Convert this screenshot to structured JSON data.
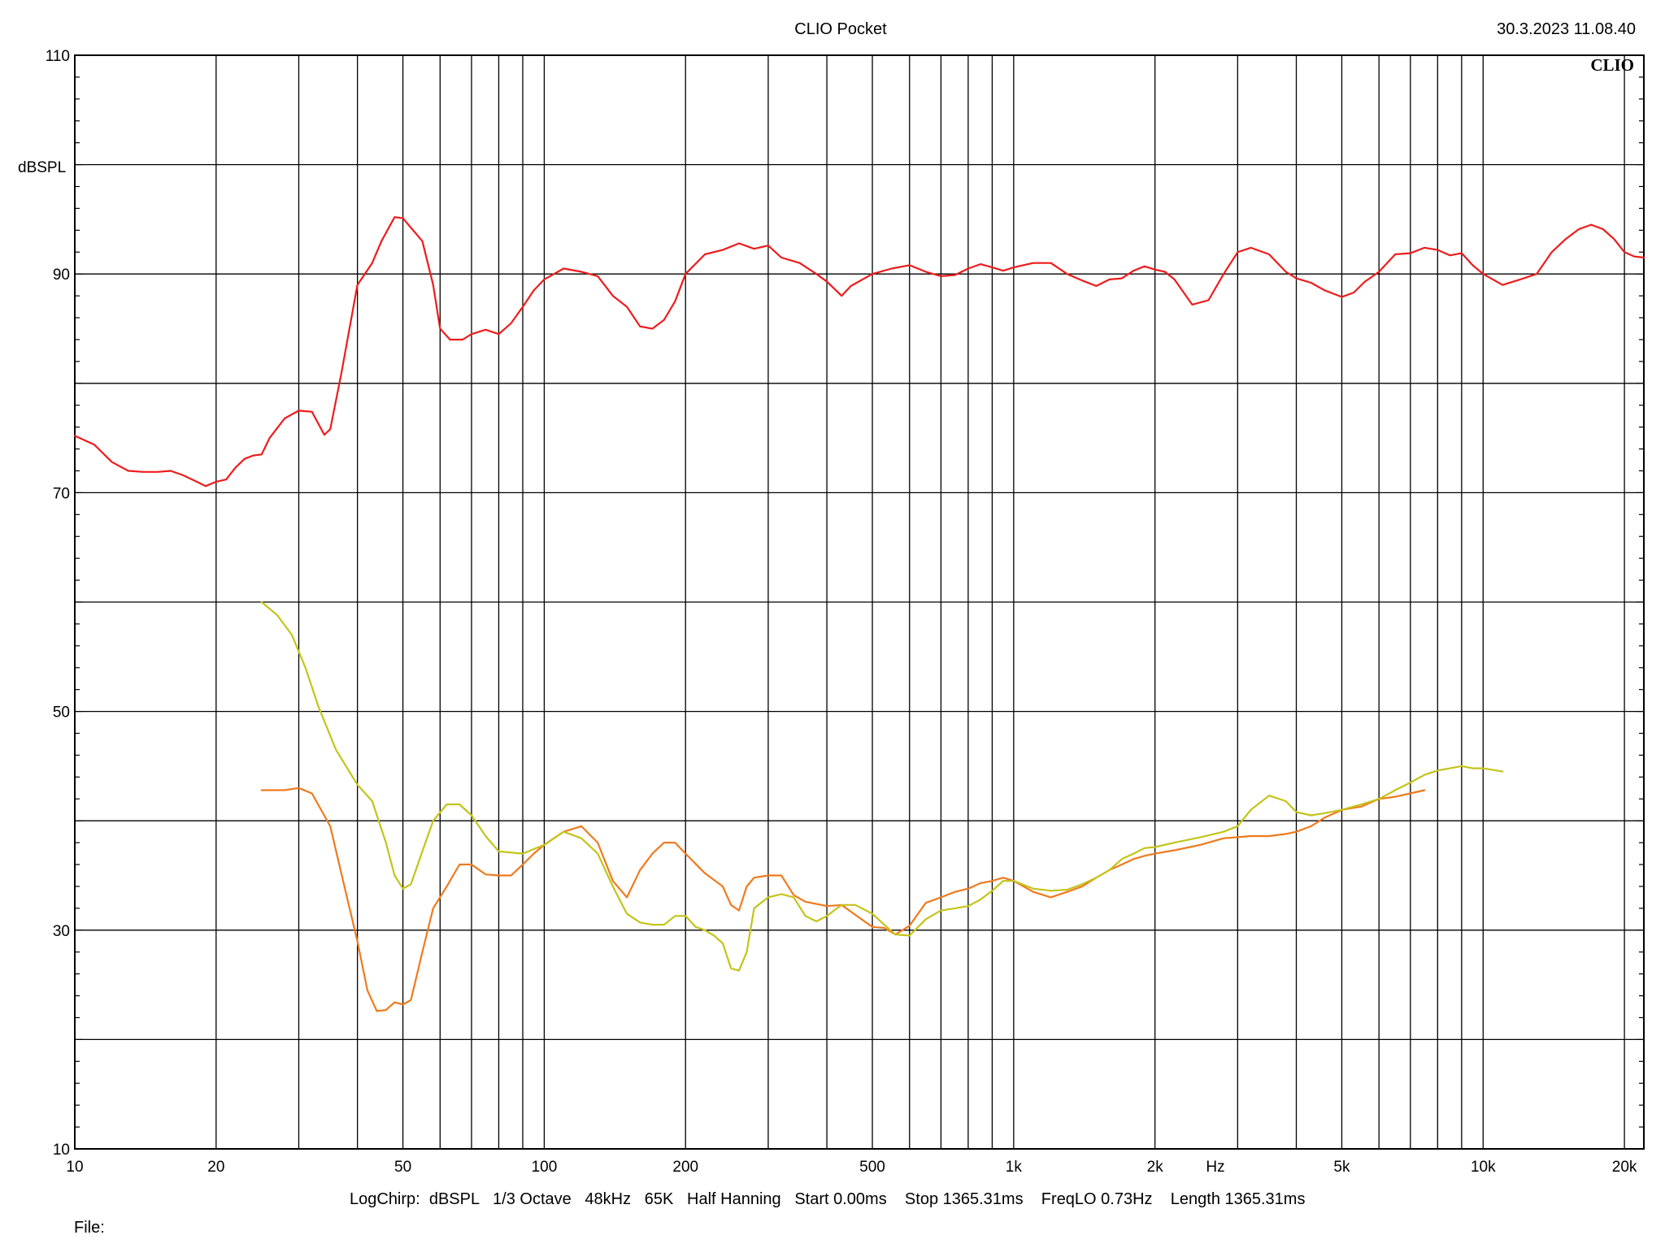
{
  "header": {
    "title": "CLIO Pocket",
    "timestamp": "30.3.2023 11.08.40",
    "logo": "CLIO"
  },
  "footer": {
    "settings": "LogChirp:  dBSPL   1/3 Octave   48kHz   65K   Half Hanning   Start 0.00ms    Stop 1365.31ms    FreqLO 0.73Hz    Length 1365.31ms",
    "file_label": "File:"
  },
  "colors": {
    "background": "#ffffff",
    "grid": "#000000",
    "series_red": "#ee1c1c",
    "series_orange": "#f07a1e",
    "series_yellow": "#c4c41a"
  },
  "chart_data": {
    "type": "line",
    "title": "CLIO Pocket",
    "xlabel": "Hz",
    "ylabel": "dBSPL",
    "xscale": "log",
    "xlim": [
      10,
      22000
    ],
    "ylim": [
      10,
      110
    ],
    "grid": true,
    "x_tick_labels": [
      {
        "value": 10,
        "label": "10"
      },
      {
        "value": 20,
        "label": "20"
      },
      {
        "value": 50,
        "label": "50"
      },
      {
        "value": 100,
        "label": "100"
      },
      {
        "value": 200,
        "label": "200"
      },
      {
        "value": 500,
        "label": "500"
      },
      {
        "value": 1000,
        "label": "1k"
      },
      {
        "value": 2000,
        "label": "2k"
      },
      {
        "value": 5000,
        "label": "5k"
      },
      {
        "value": 10000,
        "label": "10k"
      },
      {
        "value": 20000,
        "label": "20k"
      }
    ],
    "x_minor_gridlines": [
      30,
      40,
      60,
      70,
      80,
      90,
      300,
      400,
      600,
      700,
      800,
      900,
      3000,
      4000,
      6000,
      7000,
      8000,
      9000
    ],
    "y_tick_labels": [
      {
        "value": 10,
        "label": "10"
      },
      {
        "value": 30,
        "label": "30"
      },
      {
        "value": 50,
        "label": "50"
      },
      {
        "value": 70,
        "label": "70"
      },
      {
        "value": 90,
        "label": "90"
      },
      {
        "value": 110,
        "label": "110"
      }
    ],
    "y_gridlines": [
      20,
      30,
      40,
      50,
      60,
      70,
      80,
      90,
      100
    ],
    "series": [
      {
        "color": "#ee1c1c",
        "points": [
          [
            10,
            75.2
          ],
          [
            11,
            74.4
          ],
          [
            12,
            72.8
          ],
          [
            13,
            72.0
          ],
          [
            14,
            71.9
          ],
          [
            15,
            71.9
          ],
          [
            16,
            72.0
          ],
          [
            17,
            71.6
          ],
          [
            18,
            71.1
          ],
          [
            19,
            70.6
          ],
          [
            20,
            71.0
          ],
          [
            21,
            71.2
          ],
          [
            22,
            72.3
          ],
          [
            23,
            73.1
          ],
          [
            24,
            73.4
          ],
          [
            25,
            73.5
          ],
          [
            26,
            75.0
          ],
          [
            28,
            76.8
          ],
          [
            30,
            77.5
          ],
          [
            32,
            77.4
          ],
          [
            34,
            75.3
          ],
          [
            35,
            75.8
          ],
          [
            37,
            81.0
          ],
          [
            40,
            89.0
          ],
          [
            43,
            91.0
          ],
          [
            45,
            93.0
          ],
          [
            48,
            95.2
          ],
          [
            50,
            95.1
          ],
          [
            55,
            93.0
          ],
          [
            58,
            89.0
          ],
          [
            60,
            85.0
          ],
          [
            63,
            84.0
          ],
          [
            67,
            84.0
          ],
          [
            70,
            84.5
          ],
          [
            75,
            84.9
          ],
          [
            80,
            84.5
          ],
          [
            85,
            85.5
          ],
          [
            90,
            87.0
          ],
          [
            95,
            88.5
          ],
          [
            100,
            89.5
          ],
          [
            110,
            90.5
          ],
          [
            120,
            90.2
          ],
          [
            130,
            89.8
          ],
          [
            140,
            88.0
          ],
          [
            150,
            87.0
          ],
          [
            160,
            85.2
          ],
          [
            170,
            85.0
          ],
          [
            180,
            85.8
          ],
          [
            190,
            87.5
          ],
          [
            200,
            90.0
          ],
          [
            220,
            91.8
          ],
          [
            240,
            92.2
          ],
          [
            260,
            92.8
          ],
          [
            280,
            92.3
          ],
          [
            300,
            92.6
          ],
          [
            320,
            91.5
          ],
          [
            350,
            91.0
          ],
          [
            380,
            90.0
          ],
          [
            400,
            89.3
          ],
          [
            430,
            88.0
          ],
          [
            450,
            88.9
          ],
          [
            500,
            90.0
          ],
          [
            550,
            90.5
          ],
          [
            600,
            90.8
          ],
          [
            650,
            90.2
          ],
          [
            700,
            89.8
          ],
          [
            750,
            89.9
          ],
          [
            800,
            90.5
          ],
          [
            850,
            90.9
          ],
          [
            900,
            90.6
          ],
          [
            950,
            90.3
          ],
          [
            1000,
            90.6
          ],
          [
            1100,
            91.0
          ],
          [
            1200,
            91.0
          ],
          [
            1300,
            90.0
          ],
          [
            1400,
            89.4
          ],
          [
            1500,
            88.9
          ],
          [
            1600,
            89.5
          ],
          [
            1700,
            89.6
          ],
          [
            1800,
            90.3
          ],
          [
            1900,
            90.7
          ],
          [
            2000,
            90.4
          ],
          [
            2100,
            90.2
          ],
          [
            2200,
            89.5
          ],
          [
            2400,
            87.2
          ],
          [
            2600,
            87.6
          ],
          [
            2800,
            90.0
          ],
          [
            3000,
            92.0
          ],
          [
            3200,
            92.4
          ],
          [
            3500,
            91.8
          ],
          [
            3800,
            90.2
          ],
          [
            4000,
            89.6
          ],
          [
            4300,
            89.2
          ],
          [
            4600,
            88.5
          ],
          [
            5000,
            87.9
          ],
          [
            5300,
            88.3
          ],
          [
            5600,
            89.3
          ],
          [
            6000,
            90.2
          ],
          [
            6500,
            91.8
          ],
          [
            7000,
            91.9
          ],
          [
            7500,
            92.4
          ],
          [
            8000,
            92.2
          ],
          [
            8500,
            91.7
          ],
          [
            9000,
            91.9
          ],
          [
            9500,
            90.8
          ],
          [
            10000,
            90.0
          ],
          [
            11000,
            89.0
          ],
          [
            12000,
            89.5
          ],
          [
            13000,
            90.0
          ],
          [
            14000,
            92.0
          ],
          [
            15000,
            93.2
          ],
          [
            16000,
            94.1
          ],
          [
            17000,
            94.5
          ],
          [
            18000,
            94.1
          ],
          [
            19000,
            93.2
          ],
          [
            20000,
            92.0
          ],
          [
            21000,
            91.6
          ],
          [
            22000,
            91.5
          ]
        ]
      },
      {
        "color": "#f07a1e",
        "points": [
          [
            25,
            42.8
          ],
          [
            28,
            42.8
          ],
          [
            30,
            43.0
          ],
          [
            32,
            42.5
          ],
          [
            35,
            39.5
          ],
          [
            38,
            33.0
          ],
          [
            40,
            29.0
          ],
          [
            42,
            24.5
          ],
          [
            44,
            22.6
          ],
          [
            46,
            22.7
          ],
          [
            48,
            23.4
          ],
          [
            50,
            23.2
          ],
          [
            52,
            23.6
          ],
          [
            55,
            28.0
          ],
          [
            58,
            32.0
          ],
          [
            62,
            34.0
          ],
          [
            66,
            36.0
          ],
          [
            70,
            36.0
          ],
          [
            75,
            35.1
          ],
          [
            80,
            35.0
          ],
          [
            85,
            35.0
          ],
          [
            90,
            36.0
          ],
          [
            95,
            37.0
          ],
          [
            100,
            37.8
          ],
          [
            110,
            39.0
          ],
          [
            120,
            39.5
          ],
          [
            130,
            38.0
          ],
          [
            140,
            34.5
          ],
          [
            150,
            33.0
          ],
          [
            160,
            35.5
          ],
          [
            170,
            37.0
          ],
          [
            180,
            38.0
          ],
          [
            190,
            38.0
          ],
          [
            200,
            37.0
          ],
          [
            220,
            35.2
          ],
          [
            240,
            34.0
          ],
          [
            250,
            32.3
          ],
          [
            260,
            31.8
          ],
          [
            270,
            34.0
          ],
          [
            280,
            34.8
          ],
          [
            300,
            35.0
          ],
          [
            320,
            35.0
          ],
          [
            340,
            33.2
          ],
          [
            360,
            32.6
          ],
          [
            400,
            32.2
          ],
          [
            430,
            32.3
          ],
          [
            460,
            31.4
          ],
          [
            500,
            30.3
          ],
          [
            530,
            30.2
          ],
          [
            560,
            29.6
          ],
          [
            600,
            30.4
          ],
          [
            650,
            32.5
          ],
          [
            700,
            33.0
          ],
          [
            750,
            33.5
          ],
          [
            800,
            33.8
          ],
          [
            850,
            34.3
          ],
          [
            900,
            34.5
          ],
          [
            950,
            34.8
          ],
          [
            1000,
            34.5
          ],
          [
            1100,
            33.5
          ],
          [
            1200,
            33.0
          ],
          [
            1300,
            33.5
          ],
          [
            1400,
            34.0
          ],
          [
            1500,
            34.8
          ],
          [
            1600,
            35.5
          ],
          [
            1700,
            36.0
          ],
          [
            1800,
            36.5
          ],
          [
            1900,
            36.8
          ],
          [
            2000,
            37.0
          ],
          [
            2200,
            37.3
          ],
          [
            2500,
            37.8
          ],
          [
            2800,
            38.4
          ],
          [
            3000,
            38.5
          ],
          [
            3200,
            38.6
          ],
          [
            3500,
            38.6
          ],
          [
            3800,
            38.8
          ],
          [
            4000,
            39.0
          ],
          [
            4300,
            39.5
          ],
          [
            4600,
            40.3
          ],
          [
            5000,
            41.0
          ],
          [
            5500,
            41.3
          ],
          [
            6000,
            42.0
          ],
          [
            6500,
            42.2
          ],
          [
            7000,
            42.5
          ],
          [
            7500,
            42.8
          ]
        ]
      },
      {
        "color": "#c4c41a",
        "points": [
          [
            25,
            60.0
          ],
          [
            27,
            58.8
          ],
          [
            29,
            57.0
          ],
          [
            31,
            54.0
          ],
          [
            33,
            50.5
          ],
          [
            36,
            46.5
          ],
          [
            40,
            43.3
          ],
          [
            43,
            41.8
          ],
          [
            46,
            38.0
          ],
          [
            48,
            35.0
          ],
          [
            50,
            33.8
          ],
          [
            52,
            34.2
          ],
          [
            55,
            37.2
          ],
          [
            58,
            40.0
          ],
          [
            62,
            41.5
          ],
          [
            66,
            41.5
          ],
          [
            70,
            40.5
          ],
          [
            75,
            38.6
          ],
          [
            80,
            37.2
          ],
          [
            90,
            37.0
          ],
          [
            100,
            37.8
          ],
          [
            110,
            39.0
          ],
          [
            120,
            38.4
          ],
          [
            130,
            37.0
          ],
          [
            140,
            34.0
          ],
          [
            150,
            31.5
          ],
          [
            160,
            30.7
          ],
          [
            170,
            30.5
          ],
          [
            180,
            30.5
          ],
          [
            190,
            31.3
          ],
          [
            200,
            31.3
          ],
          [
            210,
            30.3
          ],
          [
            220,
            30.0
          ],
          [
            230,
            29.5
          ],
          [
            240,
            28.8
          ],
          [
            250,
            26.5
          ],
          [
            260,
            26.3
          ],
          [
            270,
            28.0
          ],
          [
            280,
            32.0
          ],
          [
            300,
            33.0
          ],
          [
            320,
            33.3
          ],
          [
            340,
            33.0
          ],
          [
            360,
            31.3
          ],
          [
            380,
            30.8
          ],
          [
            400,
            31.3
          ],
          [
            430,
            32.3
          ],
          [
            460,
            32.3
          ],
          [
            500,
            31.5
          ],
          [
            530,
            30.5
          ],
          [
            560,
            29.6
          ],
          [
            600,
            29.5
          ],
          [
            650,
            31.0
          ],
          [
            700,
            31.8
          ],
          [
            750,
            32.0
          ],
          [
            800,
            32.2
          ],
          [
            850,
            32.8
          ],
          [
            900,
            33.6
          ],
          [
            950,
            34.5
          ],
          [
            1000,
            34.5
          ],
          [
            1100,
            33.8
          ],
          [
            1200,
            33.6
          ],
          [
            1300,
            33.7
          ],
          [
            1400,
            34.2
          ],
          [
            1500,
            34.8
          ],
          [
            1600,
            35.5
          ],
          [
            1700,
            36.5
          ],
          [
            1800,
            37.0
          ],
          [
            1900,
            37.5
          ],
          [
            2000,
            37.6
          ],
          [
            2200,
            38.0
          ],
          [
            2500,
            38.5
          ],
          [
            2800,
            39.0
          ],
          [
            3000,
            39.5
          ],
          [
            3200,
            41.0
          ],
          [
            3500,
            42.3
          ],
          [
            3800,
            41.8
          ],
          [
            4000,
            40.8
          ],
          [
            4300,
            40.5
          ],
          [
            4600,
            40.7
          ],
          [
            5000,
            41.0
          ],
          [
            5500,
            41.5
          ],
          [
            6000,
            42.0
          ],
          [
            6500,
            42.8
          ],
          [
            7000,
            43.5
          ],
          [
            7500,
            44.2
          ],
          [
            8000,
            44.6
          ],
          [
            8500,
            44.8
          ],
          [
            9000,
            45.0
          ],
          [
            9500,
            44.8
          ],
          [
            10000,
            44.8
          ],
          [
            11000,
            44.5
          ]
        ]
      }
    ]
  }
}
